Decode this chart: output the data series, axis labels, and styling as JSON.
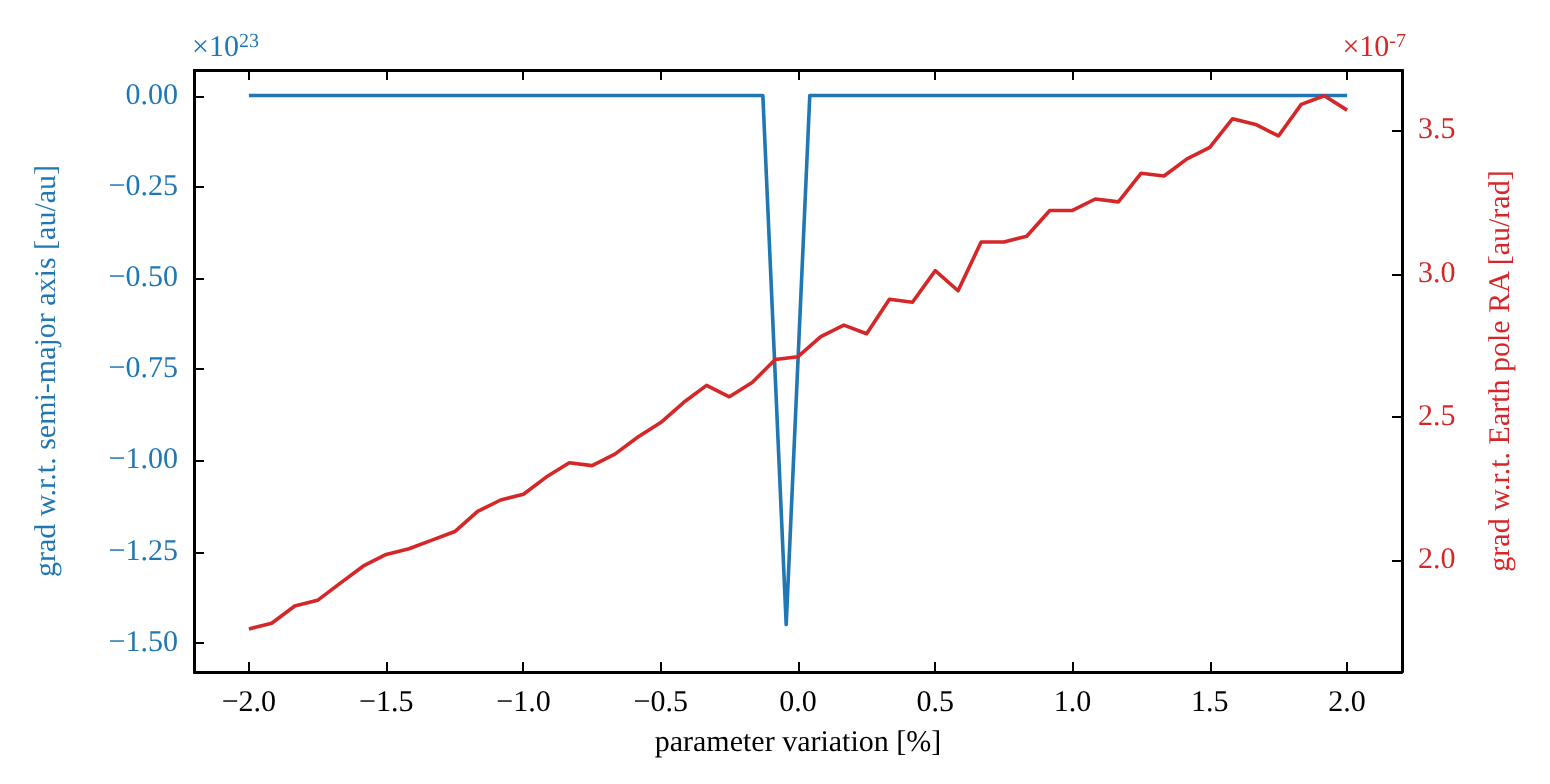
{
  "chart_data": {
    "type": "line",
    "xlabel": "parameter variation [%]",
    "ylabel": "grad w.r.t. semi-major axis [au/au]",
    "y2label": "grad w.r.t. Earth pole RA [au/rad]",
    "annotations": [
      "×10$^{23}$",
      "×10$^{-7}$"
    ],
    "xlim": [
      -2.2,
      2.2
    ],
    "xticks": [
      {
        "value": -2,
        "label": "−2.0"
      },
      {
        "value": -1.5,
        "label": "−1.5"
      },
      {
        "value": -1,
        "label": "−1.0"
      },
      {
        "value": -0.5,
        "label": "−0.5"
      },
      {
        "value": 0,
        "label": "0.0"
      },
      {
        "value": 0.5,
        "label": "0.5"
      },
      {
        "value": 1,
        "label": "1.0"
      },
      {
        "value": 1.5,
        "label": "1.5"
      },
      {
        "value": 2,
        "label": "2.0"
      }
    ],
    "ylim": [
      -1.58,
      0.07
    ],
    "yticks": [
      {
        "value": 0,
        "label": "0.00"
      },
      {
        "value": -0.25,
        "label": "−0.25"
      },
      {
        "value": -0.5,
        "label": "−0.50"
      },
      {
        "value": -0.75,
        "label": "−0.75"
      },
      {
        "value": -1,
        "label": "−1.00"
      },
      {
        "value": -1.25,
        "label": "−1.25"
      },
      {
        "value": -1.5,
        "label": "−1.50"
      }
    ],
    "y2lim": [
      1.61,
      3.71
    ],
    "y2ticks": [
      {
        "value": 2,
        "label": "2.0"
      },
      {
        "value": 2.5,
        "label": "2.5"
      },
      {
        "value": 3,
        "label": "3.0"
      },
      {
        "value": 3.5,
        "label": "3.5"
      }
    ],
    "grid": false,
    "marker": "none",
    "line_style": "solid",
    "series": [
      {
        "color": "#1f77b4",
        "x": [
          -2,
          -0.128,
          -0.043,
          0.043,
          2
        ],
        "values": [
          0,
          0,
          -1.45,
          0,
          0
        ]
      },
      {
        "color": "#d62728",
        "axis": "y2",
        "x": [
          -2,
          -1.917,
          -1.833,
          -1.75,
          -1.667,
          -1.583,
          -1.5,
          -1.417,
          -1.333,
          -1.25,
          -1.167,
          -1.083,
          -1,
          -0.917,
          -0.833,
          -0.75,
          -0.667,
          -0.583,
          -0.5,
          -0.417,
          -0.333,
          -0.25,
          -0.167,
          -0.083,
          0,
          0.083,
          0.167,
          0.25,
          0.333,
          0.417,
          0.5,
          0.583,
          0.667,
          0.75,
          0.833,
          0.917,
          1,
          1.083,
          1.167,
          1.25,
          1.333,
          1.417,
          1.5,
          1.583,
          1.667,
          1.75,
          1.833,
          1.917,
          2
        ],
        "values": [
          1.76,
          1.78,
          1.84,
          1.86,
          1.92,
          1.98,
          2.02,
          2.04,
          2.07,
          2.1,
          2.17,
          2.21,
          2.23,
          2.29,
          2.34,
          2.33,
          2.37,
          2.43,
          2.48,
          2.55,
          2.61,
          2.57,
          2.62,
          2.7,
          2.71,
          2.78,
          2.82,
          2.79,
          2.91,
          2.9,
          3.01,
          2.94,
          3.11,
          3.11,
          3.13,
          3.22,
          3.22,
          3.26,
          3.25,
          3.35,
          3.34,
          3.4,
          3.44,
          3.54,
          3.52,
          3.48,
          3.59,
          3.62,
          3.57
        ]
      }
    ]
  }
}
